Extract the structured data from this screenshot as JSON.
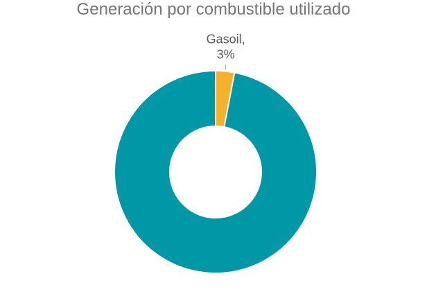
{
  "chart_data": {
    "type": "pie",
    "donut": true,
    "title": "Generación por combustible utilizado",
    "slices": [
      {
        "label": "Gasoil,",
        "value_label": "3%",
        "value": 3,
        "color": "#F4B12C"
      },
      {
        "label": "",
        "value_label": "",
        "value": 97,
        "color": "#0097A7"
      }
    ],
    "legend": "none"
  }
}
